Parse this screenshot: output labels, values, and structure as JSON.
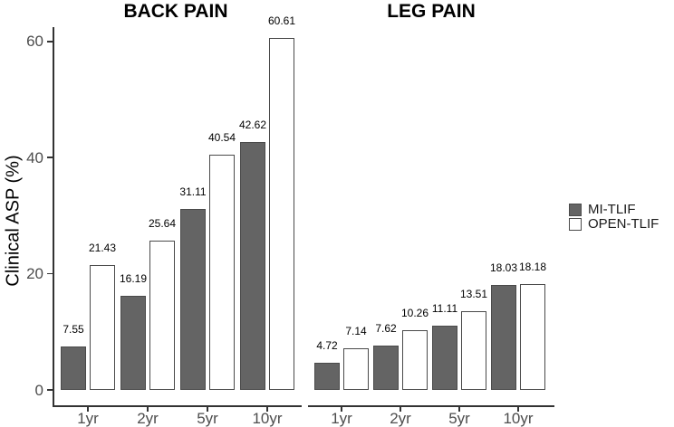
{
  "figure": {
    "ylabel": "Clinical ASP (%)",
    "yticks": [
      0,
      20,
      40,
      60
    ],
    "legend": [
      {
        "label": "MI-TLIF",
        "fill": "#646464"
      },
      {
        "label": "OPEN-TLIF",
        "fill": "#ffffff"
      }
    ]
  },
  "colors": {
    "mi_tlif_fill": "#646464",
    "open_tlif_fill": "#ffffff",
    "bar_border": "#4a4a4a",
    "axis_line": "#333333",
    "tick_label": "#4d4d4d",
    "value_label": "#000000",
    "title": "#000000"
  },
  "chart_data": [
    {
      "type": "bar",
      "title": "BACK PAIN",
      "categories": [
        "1yr",
        "2yr",
        "5yr",
        "10yr"
      ],
      "series": [
        {
          "name": "MI-TLIF",
          "values": [
            7.55,
            16.19,
            31.11,
            42.62
          ]
        },
        {
          "name": "OPEN-TLIF",
          "values": [
            21.43,
            25.64,
            40.54,
            60.61
          ]
        }
      ],
      "xlabel": "",
      "ylabel": "Clinical ASP (%)",
      "ylim": [
        0,
        62
      ],
      "grid": false,
      "value_labels": true,
      "legend_position": "right"
    },
    {
      "type": "bar",
      "title": "LEG PAIN",
      "categories": [
        "1yr",
        "2yr",
        "5yr",
        "10yr"
      ],
      "series": [
        {
          "name": "MI-TLIF",
          "values": [
            4.72,
            7.62,
            11.11,
            18.03
          ]
        },
        {
          "name": "OPEN-TLIF",
          "values": [
            7.14,
            10.26,
            13.51,
            18.18
          ]
        }
      ],
      "xlabel": "",
      "ylabel": "Clinical ASP (%)",
      "ylim": [
        0,
        62
      ],
      "grid": false,
      "value_labels": true,
      "legend_position": "right"
    }
  ]
}
